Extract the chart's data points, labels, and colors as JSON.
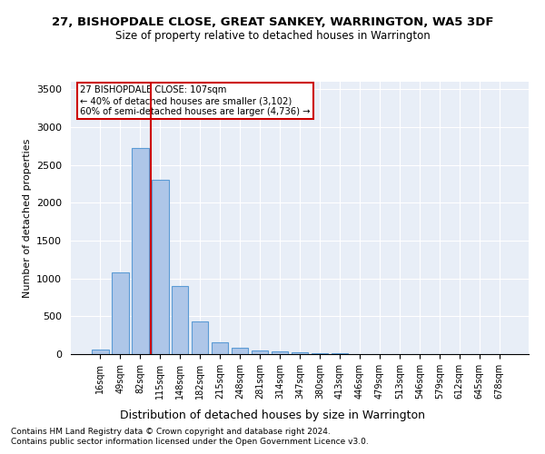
{
  "title": "27, BISHOPDALE CLOSE, GREAT SANKEY, WARRINGTON, WA5 3DF",
  "subtitle": "Size of property relative to detached houses in Warrington",
  "xlabel": "Distribution of detached houses by size in Warrington",
  "ylabel": "Number of detached properties",
  "categories": [
    "16sqm",
    "49sqm",
    "82sqm",
    "115sqm",
    "148sqm",
    "182sqm",
    "215sqm",
    "248sqm",
    "281sqm",
    "314sqm",
    "347sqm",
    "380sqm",
    "413sqm",
    "446sqm",
    "479sqm",
    "513sqm",
    "546sqm",
    "579sqm",
    "612sqm",
    "645sqm",
    "678sqm"
  ],
  "values": [
    60,
    1080,
    2720,
    2300,
    900,
    430,
    160,
    90,
    50,
    35,
    20,
    10,
    8,
    4,
    3,
    2,
    1,
    1,
    0,
    0,
    0
  ],
  "bar_color": "#aec6e8",
  "bar_edge_color": "#5b9bd5",
  "property_line_x": 2.55,
  "annotation_text": "27 BISHOPDALE CLOSE: 107sqm\n← 40% of detached houses are smaller (3,102)\n60% of semi-detached houses are larger (4,736) →",
  "annotation_box_color": "#ffffff",
  "annotation_box_edge_color": "#cc0000",
  "vline_color": "#cc0000",
  "bg_color": "#e8eef7",
  "footer1": "Contains HM Land Registry data © Crown copyright and database right 2024.",
  "footer2": "Contains public sector information licensed under the Open Government Licence v3.0.",
  "ylim": [
    0,
    3600
  ],
  "yticks": [
    0,
    500,
    1000,
    1500,
    2000,
    2500,
    3000,
    3500
  ]
}
